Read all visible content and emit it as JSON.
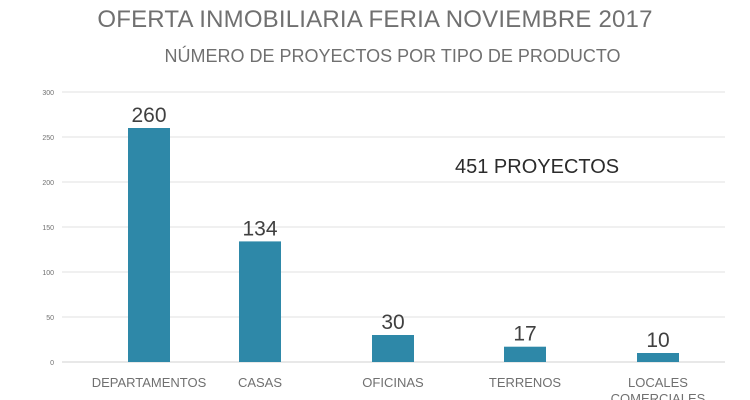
{
  "chart_data": {
    "type": "bar",
    "title": "OFERTA INMOBILIARIA FERIA NOVIEMBRE 2017",
    "subtitle": "NÚMERO DE PROYECTOS POR TIPO DE PRODUCTO",
    "categories": [
      "DEPARTAMENTOS",
      "CASAS",
      "OFICINAS",
      "TERRENOS",
      "LOCALES COMERCIALES"
    ],
    "values": [
      260,
      134,
      30,
      17,
      10
    ],
    "data_labels": [
      "260",
      "134",
      "30",
      "17",
      "10"
    ],
    "annotation": "451 PROYECTOS",
    "xlabel": "",
    "ylabel": "",
    "ylim": [
      0,
      300
    ],
    "yticks": [
      0,
      50,
      100,
      150,
      200,
      250,
      300
    ],
    "grid": true,
    "legend": "none",
    "colors": {
      "bar": "#2e88a8",
      "grid": "#e2e2e2",
      "text": "#707070",
      "annotation": "#2b2b2b",
      "data_label": "#404040"
    }
  }
}
